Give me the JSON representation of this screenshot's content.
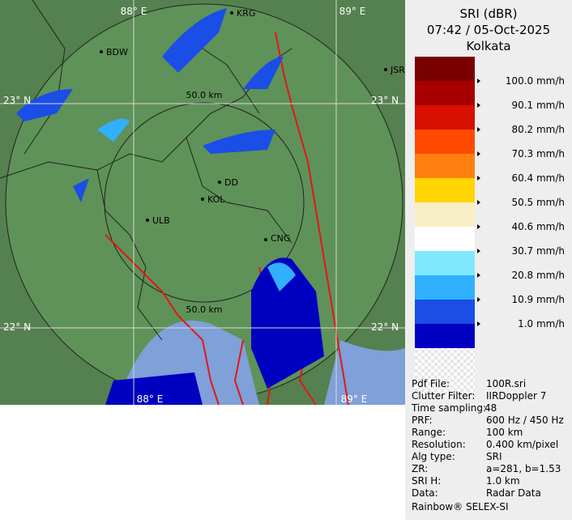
{
  "map": {
    "lon_labels": [
      "88° E",
      "89° E"
    ],
    "lat_labels": [
      "23° N",
      "22° N"
    ],
    "places": [
      "KRG",
      "BDW",
      "JSR",
      "DD",
      "KOL",
      "ULB",
      "CNG"
    ],
    "range_labels": [
      "50.0 km",
      "50.0 km"
    ]
  },
  "panel": {
    "product": "SRI (dBR)",
    "datetime": "07:42 / 05-Oct-2025",
    "station": "Kolkata",
    "legend": {
      "colors": [
        "#7a0000",
        "#a80000",
        "#d81000",
        "#ff4a00",
        "#ff8010",
        "#ffd400",
        "#f8efc4",
        "#ffffff",
        "#80e8ff",
        "#30b0ff",
        "#1a4ee6",
        "#0000c0"
      ],
      "labels": [
        "100.0 mm/h",
        "90.1 mm/h",
        "80.2 mm/h",
        "70.3 mm/h",
        "60.4 mm/h",
        "50.5 mm/h",
        "40.6 mm/h",
        "30.7 mm/h",
        "20.8 mm/h",
        "10.9 mm/h",
        "1.0 mm/h"
      ]
    },
    "info": [
      [
        "Pdf File:",
        "100R.sri"
      ],
      [
        "Clutter Filter:",
        "IIRDoppler 7"
      ],
      [
        "Time sampling:",
        "48"
      ],
      [
        "PRF:",
        "600 Hz / 450 Hz"
      ],
      [
        "Range:",
        "100 km"
      ],
      [
        "Resolution:",
        "0.400 km/pixel"
      ],
      [
        "Alg type:",
        "SRI"
      ],
      [
        "ZR:",
        "a=281, b=1.53"
      ],
      [
        "SRI H:",
        "1.0 km"
      ],
      [
        "Data:",
        "Radar Data"
      ]
    ],
    "footer": "Rainbow® SELEX-SI"
  }
}
